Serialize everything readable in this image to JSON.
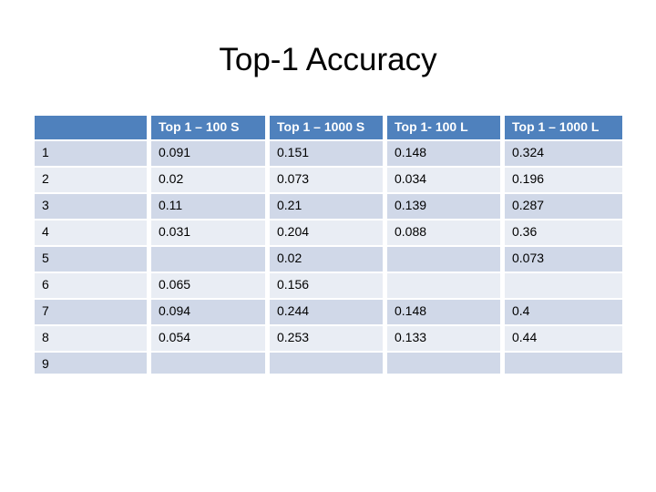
{
  "title": "Top-1 Accuracy",
  "table": {
    "columns": [
      "",
      "Top 1 – 100 S",
      "Top 1 – 1000 S",
      "Top 1- 100 L",
      "Top 1 – 1000 L"
    ],
    "rows": [
      {
        "label": "1",
        "values": [
          "0.091",
          "0.151",
          "0.148",
          "0.324"
        ]
      },
      {
        "label": "2",
        "values": [
          "0.02",
          "0.073",
          "0.034",
          "0.196"
        ]
      },
      {
        "label": "3",
        "values": [
          "0.11",
          "0.21",
          "0.139",
          "0.287"
        ]
      },
      {
        "label": "4",
        "values": [
          "0.031",
          "0.204",
          "0.088",
          "0.36"
        ]
      },
      {
        "label": "5",
        "values": [
          "",
          "0.02",
          "",
          "0.073"
        ]
      },
      {
        "label": "6",
        "values": [
          "0.065",
          "0.156",
          "",
          ""
        ]
      },
      {
        "label": "7",
        "values": [
          "0.094",
          "0.244",
          "0.148",
          "0.4"
        ]
      },
      {
        "label": "8",
        "values": [
          "0.054",
          "0.253",
          "0.133",
          "0.44"
        ]
      },
      {
        "label": "9",
        "values": [
          "",
          "",
          "",
          ""
        ]
      }
    ]
  },
  "colors": {
    "header_bg": "#4F81BD",
    "row_band_dark": "#D0D8E8",
    "row_band_light": "#E9EDF4",
    "header_text": "#FFFFFF",
    "body_text": "#000000"
  }
}
